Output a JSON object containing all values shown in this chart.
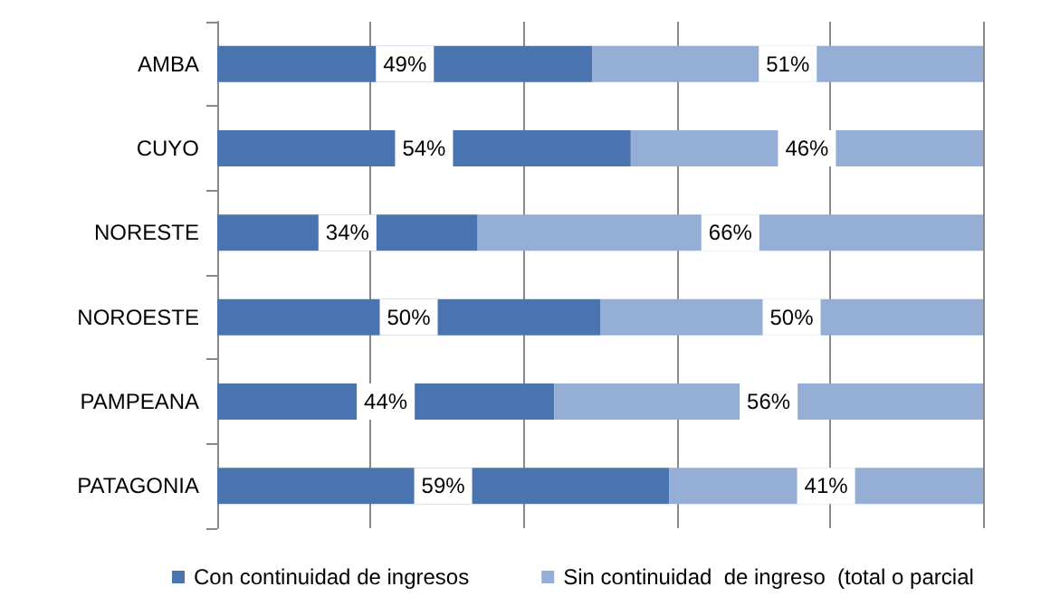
{
  "chart_data": {
    "type": "bar",
    "orientation": "horizontal",
    "stacked": true,
    "categories": [
      "AMBA",
      "CUYO",
      "NORESTE",
      "NOROESTE",
      "PAMPEANA",
      "PATAGONIA"
    ],
    "series": [
      {
        "name": "Con continuidad de ingresos",
        "color": "#4a74b0",
        "values": [
          49,
          54,
          34,
          50,
          44,
          59
        ],
        "value_labels": [
          "49%",
          "54%",
          "34%",
          "50%",
          "44%",
          "59%"
        ]
      },
      {
        "name": "Sin continuidad  de ingreso  (total o parcial",
        "color": "#94aed6",
        "values": [
          51,
          46,
          66,
          50,
          56,
          41
        ],
        "value_labels": [
          "51%",
          "46%",
          "66%",
          "50%",
          "56%",
          "41%"
        ]
      }
    ],
    "xlim": [
      0,
      100
    ],
    "xticks": [
      {
        "value": 0,
        "label": null
      },
      {
        "value": 20,
        "label": null
      },
      {
        "value": 40,
        "label": null
      },
      {
        "value": 60,
        "label": null
      },
      {
        "value": 80,
        "label": null
      },
      {
        "value": 100,
        "label": null
      }
    ],
    "tick_labels": "y",
    "grid": "x",
    "legend": "bottom"
  }
}
